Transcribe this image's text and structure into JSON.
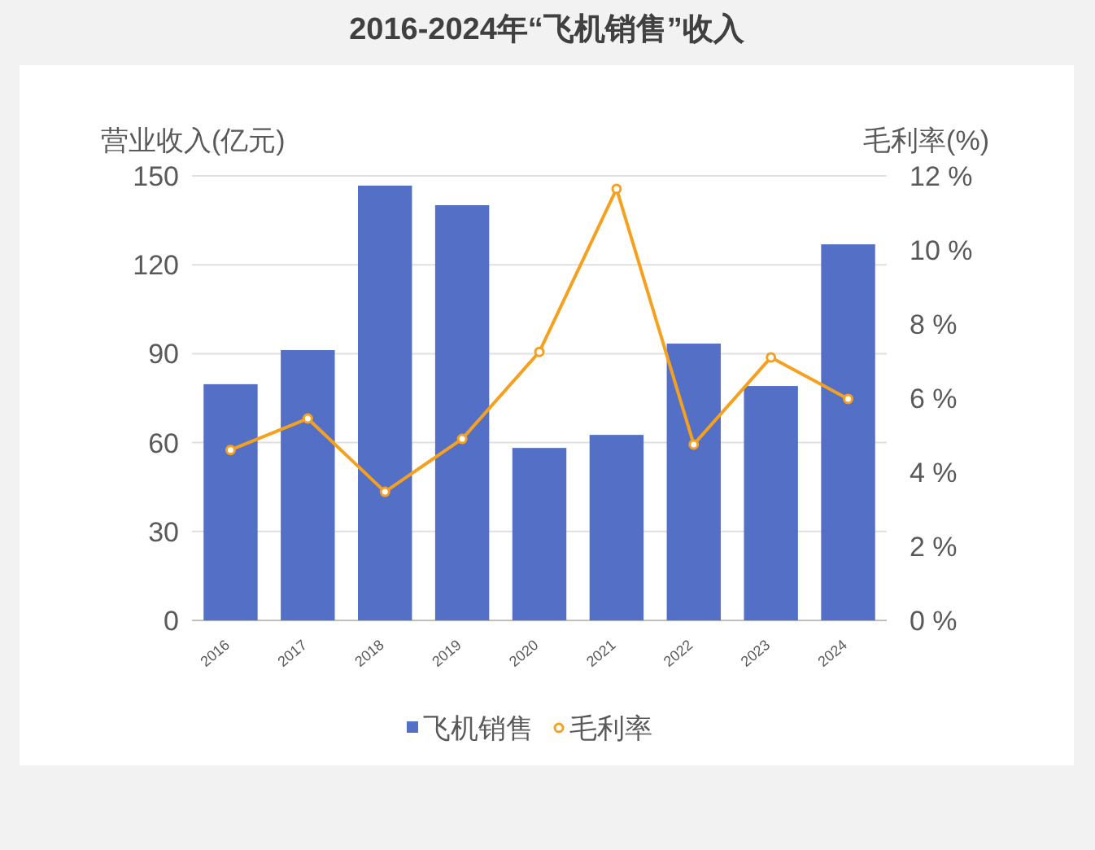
{
  "chart_data": {
    "type": "bar",
    "title": "2016-2024年“飞机销售”收入",
    "ylabel": "营业收入(亿元)",
    "y2label": "毛利率(%)",
    "categories": [
      "2016",
      "2017",
      "2018",
      "2019",
      "2020",
      "2021",
      "2022",
      "2023",
      "2024"
    ],
    "series": [
      {
        "name": "飞机销售",
        "color": "#5470c6",
        "values": [
          79.7,
          91.2,
          146.7,
          140.1,
          58.2,
          62.6,
          93.4,
          79.1,
          126.9
        ]
      },
      {
        "name": "毛利率",
        "type": "line",
        "axis": "y2",
        "color": "#f5a01f",
        "marker": "circle",
        "values": [
          4.6,
          5.45,
          3.47,
          4.9,
          7.25,
          11.65,
          4.75,
          7.1,
          5.98
        ]
      }
    ],
    "ylim": [
      0,
      150
    ],
    "yticks": [
      0,
      30,
      60,
      90,
      120,
      150
    ],
    "y2lim": [
      0,
      12
    ],
    "y2ticks": [
      {
        "value": 0,
        "label": "0 %"
      },
      {
        "value": 2,
        "label": "2 %"
      },
      {
        "value": 4,
        "label": "4 %"
      },
      {
        "value": 6,
        "label": "6 %"
      },
      {
        "value": 8,
        "label": "8 %"
      },
      {
        "value": 10,
        "label": "10 %"
      },
      {
        "value": 12,
        "label": "12 %"
      }
    ],
    "grid": "y",
    "legend": "bottom"
  }
}
